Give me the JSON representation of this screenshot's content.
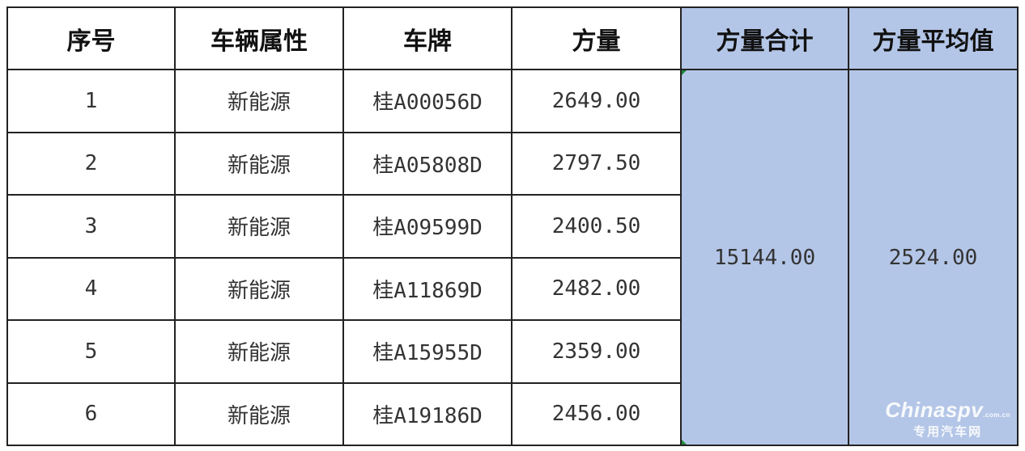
{
  "headers": [
    "序号",
    "车辆属性",
    "车牌",
    "方量",
    "方量合计",
    "方量平均值"
  ],
  "rows": [
    {
      "index": "1",
      "type": "新能源",
      "plate": "桂A00056D",
      "volume": "2649.00"
    },
    {
      "index": "2",
      "type": "新能源",
      "plate": "桂A05808D",
      "volume": "2797.50"
    },
    {
      "index": "3",
      "type": "新能源",
      "plate": "桂A09599D",
      "volume": "2400.50"
    },
    {
      "index": "4",
      "type": "新能源",
      "plate": "桂A11869D",
      "volume": "2482.00"
    },
    {
      "index": "5",
      "type": "新能源",
      "plate": "桂A15955D",
      "volume": "2359.00"
    },
    {
      "index": "6",
      "type": "新能源",
      "plate": "桂A19186D",
      "volume": "2456.00"
    }
  ],
  "total": "15144.00",
  "average": "2524.00",
  "colors": {
    "highlight": "#b4c6e7",
    "border": "#222222"
  },
  "watermark": {
    "brand": "Chinaspv",
    "domain": ".com.cn",
    "subtitle": "专用汽车网"
  }
}
